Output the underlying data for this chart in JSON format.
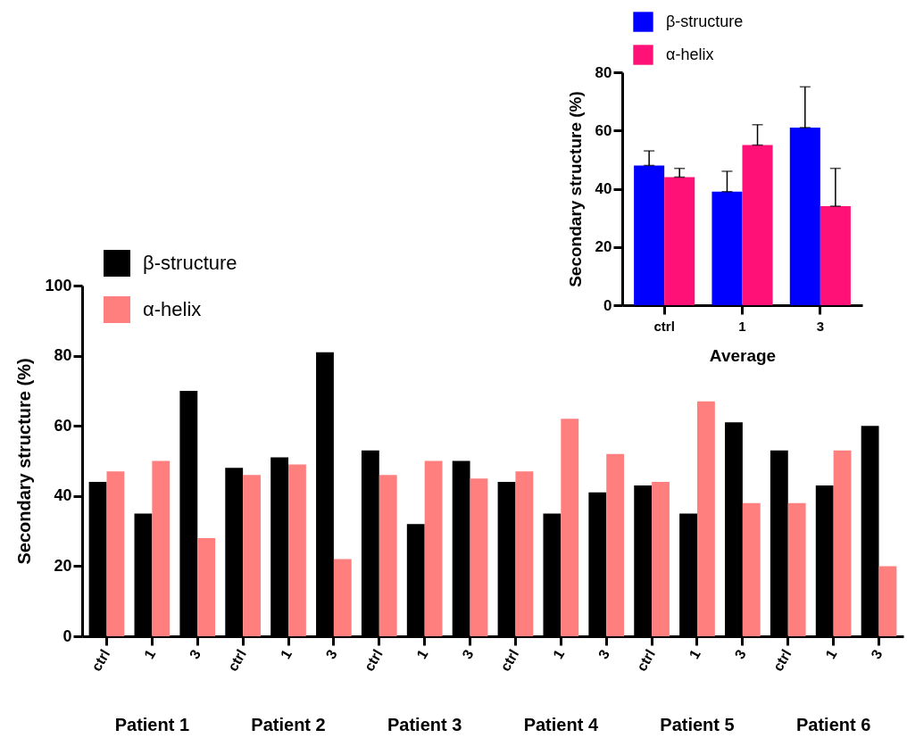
{
  "chart_data": [
    {
      "type": "bar",
      "ylabel": "Secondary structure (%)",
      "categories": [
        "ctrl",
        "1",
        "3",
        "ctrl",
        "1",
        "3",
        "ctrl",
        "1",
        "3",
        "ctrl",
        "1",
        "3",
        "ctrl",
        "1",
        "3",
        "ctrl",
        "1",
        "3"
      ],
      "series": [
        {
          "name": "β-structure",
          "color": "#000000",
          "values": [
            44,
            35,
            70,
            48,
            51,
            81,
            53,
            32,
            50,
            44,
            35,
            41,
            43,
            35,
            61,
            53,
            43,
            60
          ]
        },
        {
          "name": "α-helix",
          "color": "#ff7f7f",
          "values": [
            47,
            50,
            28,
            46,
            49,
            22,
            46,
            50,
            45,
            47,
            62,
            52,
            44,
            67,
            38,
            38,
            53,
            20
          ]
        }
      ],
      "annotations": [
        "Patient 1",
        "Patient 2",
        "Patient 3",
        "Patient 4",
        "Patient 5",
        "Patient 6"
      ],
      "ylim": [
        0,
        100
      ],
      "yticks": [
        0,
        20,
        40,
        60,
        80,
        100
      ],
      "legend": "top left"
    },
    {
      "type": "bar",
      "xlabel": "Average",
      "ylabel": "Secondary structure (%)",
      "categories": [
        "ctrl",
        "1",
        "3"
      ],
      "series": [
        {
          "name": "β-structure",
          "color": "#0000ff",
          "values": [
            48,
            39,
            61
          ],
          "errors": [
            [
              48,
              53
            ],
            [
              39,
              46
            ],
            [
              61,
              75
            ]
          ]
        },
        {
          "name": "α-helix",
          "color": "#ff1178",
          "values": [
            44,
            55,
            34
          ],
          "errors": [
            [
              44,
              47
            ],
            [
              55,
              62
            ],
            [
              34,
              47
            ]
          ]
        }
      ],
      "ylim": [
        0,
        80
      ],
      "yticks": [
        0,
        20,
        40,
        60,
        80
      ],
      "legend": "top"
    }
  ]
}
